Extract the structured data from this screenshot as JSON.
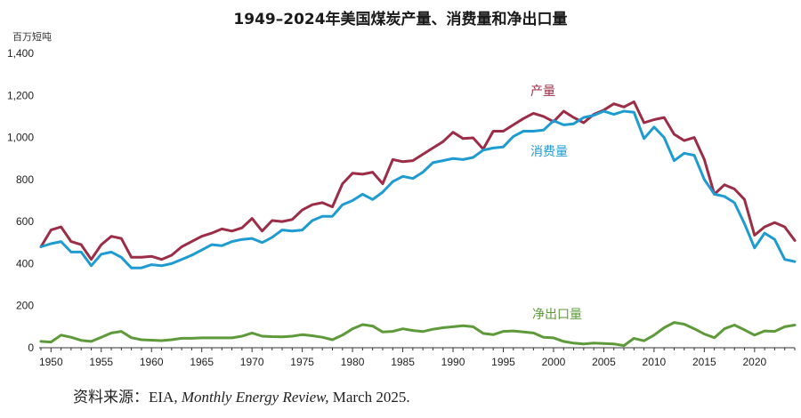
{
  "chart_data": {
    "type": "line",
    "title": "1949–2024年美国煤炭产量、消费量和净出口量",
    "ylabel": "百万短吨",
    "xlabel": "",
    "ylim": [
      0,
      1400
    ],
    "xlim": [
      1949,
      2024
    ],
    "y_ticks": [
      "0",
      "200",
      "400",
      "600",
      "800",
      "1,000",
      "1,200",
      "1,400"
    ],
    "x_ticks": [
      "1950",
      "1955",
      "1960",
      "1965",
      "1970",
      "1975",
      "1980",
      "1985",
      "1990",
      "1995",
      "2000",
      "2005",
      "2010",
      "2015",
      "2020"
    ],
    "grid": false,
    "x": [
      1949,
      1950,
      1951,
      1952,
      1953,
      1954,
      1955,
      1956,
      1957,
      1958,
      1959,
      1960,
      1961,
      1962,
      1963,
      1964,
      1965,
      1966,
      1967,
      1968,
      1969,
      1970,
      1971,
      1972,
      1973,
      1974,
      1975,
      1976,
      1977,
      1978,
      1979,
      1980,
      1981,
      1982,
      1983,
      1984,
      1985,
      1986,
      1987,
      1988,
      1989,
      1990,
      1991,
      1992,
      1993,
      1994,
      1995,
      1996,
      1997,
      1998,
      1999,
      2000,
      2001,
      2002,
      2003,
      2004,
      2005,
      2006,
      2007,
      2008,
      2009,
      2010,
      2011,
      2012,
      2013,
      2014,
      2015,
      2016,
      2017,
      2018,
      2019,
      2020,
      2021,
      2022,
      2023,
      2024
    ],
    "series": [
      {
        "name": "产量",
        "color": "#9b2d47",
        "values": [
          480,
          560,
          575,
          505,
          490,
          420,
          490,
          530,
          520,
          430,
          430,
          435,
          420,
          440,
          480,
          505,
          530,
          545,
          565,
          555,
          570,
          615,
          555,
          605,
          600,
          610,
          655,
          680,
          690,
          670,
          780,
          830,
          825,
          835,
          780,
          895,
          885,
          890,
          920,
          950,
          980,
          1025,
          995,
          998,
          945,
          1030,
          1030,
          1060,
          1090,
          1115,
          1100,
          1075,
          1125,
          1095,
          1070,
          1110,
          1130,
          1160,
          1145,
          1170,
          1070,
          1085,
          1095,
          1015,
          985,
          1000,
          895,
          730,
          775,
          755,
          705,
          535,
          575,
          595,
          575,
          510
        ]
      },
      {
        "name": "消费量",
        "color": "#1e9bd0",
        "values": [
          480,
          495,
          505,
          455,
          455,
          390,
          445,
          455,
          430,
          380,
          380,
          395,
          390,
          400,
          420,
          440,
          465,
          490,
          485,
          505,
          515,
          520,
          500,
          525,
          560,
          555,
          560,
          605,
          625,
          625,
          680,
          700,
          730,
          705,
          740,
          790,
          815,
          805,
          835,
          880,
          890,
          900,
          895,
          905,
          940,
          950,
          955,
          1005,
          1030,
          1030,
          1035,
          1080,
          1060,
          1065,
          1095,
          1105,
          1125,
          1110,
          1125,
          1120,
          995,
          1050,
          1000,
          890,
          925,
          915,
          800,
          730,
          720,
          690,
          590,
          475,
          545,
          515,
          420,
          410
        ]
      },
      {
        "name": "净出口量",
        "color": "#5e9a3a",
        "values": [
          30,
          27,
          60,
          50,
          35,
          30,
          50,
          70,
          78,
          48,
          38,
          36,
          34,
          38,
          45,
          45,
          47,
          47,
          47,
          47,
          55,
          70,
          55,
          53,
          52,
          55,
          62,
          57,
          50,
          38,
          60,
          90,
          110,
          103,
          75,
          78,
          90,
          82,
          77,
          88,
          95,
          100,
          105,
          100,
          68,
          62,
          78,
          80,
          75,
          70,
          50,
          47,
          30,
          22,
          18,
          22,
          20,
          18,
          10,
          45,
          33,
          60,
          95,
          120,
          112,
          90,
          65,
          48,
          90,
          108,
          85,
          60,
          80,
          78,
          100,
          108
        ]
      }
    ],
    "series_labels": [
      "产量",
      "消费量",
      "净出口量"
    ]
  },
  "source": {
    "prefix": "资料来源：EIA, ",
    "title": "Monthly Energy Review,",
    "suffix": " March 2025."
  }
}
